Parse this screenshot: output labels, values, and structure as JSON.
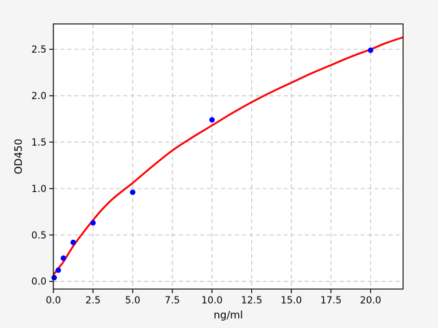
{
  "figure": {
    "background": "#f5f5f5"
  },
  "chart_data": {
    "type": "scatter",
    "title": "",
    "xlabel": "ng/ml",
    "ylabel": "OD450",
    "xlim": [
      0,
      22.05
    ],
    "ylim": [
      -0.083,
      2.774
    ],
    "x_ticks": [
      0,
      2.5,
      5,
      7.5,
      10,
      12.5,
      15,
      17.5,
      20
    ],
    "x_tick_labels": [
      "0.0",
      "2.5",
      "5.0",
      "7.5",
      "10.0",
      "12.5",
      "15.0",
      "17.5",
      "20.0"
    ],
    "y_ticks": [
      0,
      0.5,
      1,
      1.5,
      2,
      2.5
    ],
    "y_tick_labels": [
      "0.0",
      "0.5",
      "1.0",
      "1.5",
      "2.0",
      "2.5"
    ],
    "grid": true,
    "grid_style": "dashed",
    "legend": "none",
    "series": [
      {
        "name": "standard-points",
        "type": "scatter",
        "marker": "circle",
        "color": "#0000ff",
        "x": [
          0.05,
          0.31,
          0.63,
          1.25,
          2.5,
          5,
          10,
          20
        ],
        "y": [
          0.04,
          0.12,
          0.25,
          0.42,
          0.63,
          0.96,
          1.74,
          2.49
        ]
      },
      {
        "name": "fit-curve",
        "type": "line",
        "color": "#ff0000",
        "points": [
          [
            0,
            0.07
          ],
          [
            0.31,
            0.14
          ],
          [
            0.63,
            0.21
          ],
          [
            1.25,
            0.38
          ],
          [
            1.9,
            0.53
          ],
          [
            2.5,
            0.66
          ],
          [
            3.1,
            0.78
          ],
          [
            3.75,
            0.89
          ],
          [
            4.4,
            0.98
          ],
          [
            5,
            1.06
          ],
          [
            6.25,
            1.24
          ],
          [
            7.5,
            1.41
          ],
          [
            8.75,
            1.55
          ],
          [
            10,
            1.68
          ],
          [
            11.25,
            1.81
          ],
          [
            12.5,
            1.93
          ],
          [
            13.75,
            2.04
          ],
          [
            15,
            2.14
          ],
          [
            16.25,
            2.24
          ],
          [
            17.5,
            2.33
          ],
          [
            18.75,
            2.42
          ],
          [
            20,
            2.5
          ],
          [
            21,
            2.57
          ],
          [
            22.05,
            2.63
          ]
        ]
      }
    ],
    "colors": {
      "background": "#f5f5f5",
      "plot_background": "#ffffff",
      "grid": "#c4c4c4",
      "spine": "#000000",
      "tick_text": "#000000"
    }
  }
}
